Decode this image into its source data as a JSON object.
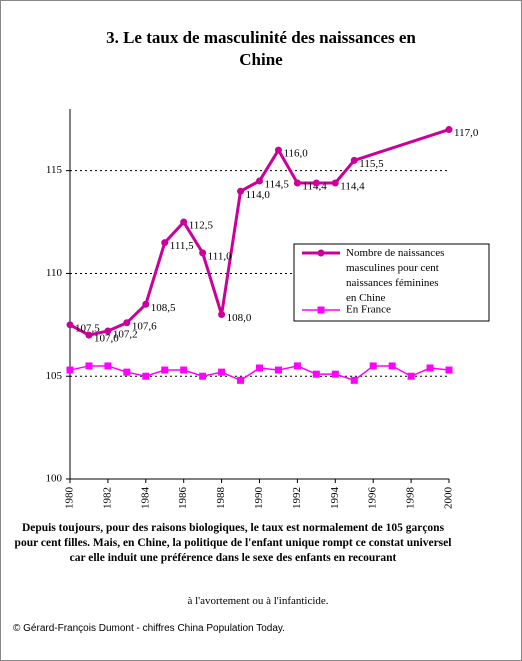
{
  "chart_data": {
    "type": "line",
    "title": "3. Le taux de masculinité des naissances en Chine",
    "xlim": [
      1980,
      2000
    ],
    "xticks": [
      1980,
      1982,
      1984,
      1986,
      1988,
      1990,
      1992,
      1994,
      1996,
      1998,
      2000
    ],
    "ylim": [
      100,
      118
    ],
    "yticks": [
      100,
      105,
      110,
      115
    ],
    "grid": true,
    "legend": "right",
    "series": [
      {
        "name": "Nombre de naissances masculines pour cent naissances féminines en Chine",
        "color": "#cc0099",
        "x": [
          1980,
          1981,
          1982,
          1983,
          1984,
          1985,
          1986,
          1987,
          1988,
          1989,
          1990,
          1991,
          1992,
          1993,
          1994,
          1995,
          2000
        ],
        "values": [
          107.5,
          107.0,
          107.2,
          107.6,
          108.5,
          111.5,
          112.5,
          111.0,
          108.0,
          114.0,
          114.5,
          116.0,
          114.4,
          114.4,
          114.4,
          115.5,
          117.0
        ],
        "value_labels": [
          "107,5",
          "107,0",
          "107,2",
          "107,6",
          "108,5",
          "111,5",
          "112,5",
          "111,0",
          "108,0",
          "114,0",
          "114,5",
          "116,0",
          "114,4",
          null,
          "114,4",
          "115,5",
          "117,0"
        ]
      },
      {
        "name": "En France",
        "color": "#ff00ff",
        "x": [
          1980,
          1981,
          1982,
          1983,
          1984,
          1985,
          1986,
          1987,
          1988,
          1989,
          1990,
          1991,
          1992,
          1993,
          1994,
          1995,
          1996,
          1997,
          1998,
          1999,
          2000
        ],
        "values": [
          105.3,
          105.5,
          105.5,
          105.2,
          105.0,
          105.3,
          105.3,
          105.0,
          105.2,
          104.8,
          105.4,
          105.3,
          105.5,
          105.1,
          105.1,
          104.8,
          105.5,
          105.5,
          105.0,
          105.4,
          105.3
        ]
      }
    ],
    "caption": "Depuis toujours, pour des raisons biologiques, le taux est normalement de 105 garçons pour cent filles. Mais, en Chine, la politique de l'enfant unique rompt ce constat universel car elle induit une préférence dans le sexe des enfants en recourant",
    "caption_end": "à l'avortement ou à l'infanticide.",
    "source": "© Gérard-François Dumont - chiffres China Population Today."
  }
}
